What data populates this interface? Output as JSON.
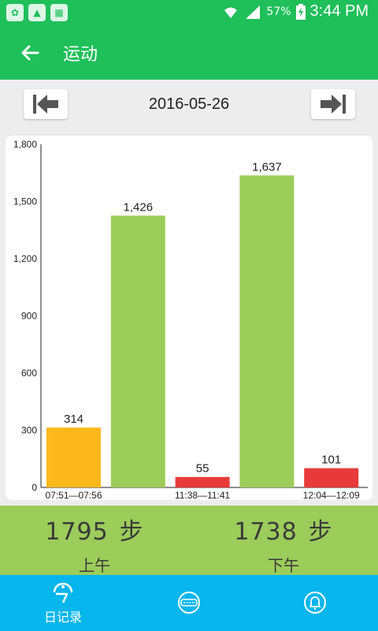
{
  "status_bar": {
    "battery": "57%",
    "time": "3:44 PM",
    "icons": [
      "app-icon-1",
      "gallery-icon",
      "app-icon-3",
      "wifi-icon",
      "signal-icon",
      "battery-charging-icon"
    ]
  },
  "app_bar": {
    "title": "运动",
    "back_icon": "arrow-left-icon"
  },
  "date_nav": {
    "date": "2016-05-26",
    "prev_icon": "skip-first-icon",
    "next_icon": "skip-last-icon"
  },
  "chart_data": {
    "type": "bar",
    "categories": [
      "07:51—07:56",
      "",
      "11:38—11:41",
      "",
      "12:04—12:09"
    ],
    "values": [
      314,
      1426,
      55,
      1637,
      101
    ],
    "value_labels": [
      "314",
      "1,426",
      "55",
      "1,637",
      "101"
    ],
    "bar_colors": [
      "#ffb81c",
      "#9ccc5a",
      "#e83a3a",
      "#9ccc5a",
      "#e83a3a"
    ],
    "yticks": [
      "0",
      "300",
      "600",
      "900",
      "1,200",
      "1,500",
      "1,800"
    ],
    "ylim": [
      0,
      1800
    ],
    "grid": false
  },
  "summary": {
    "am": {
      "value": "1795",
      "unit": "步",
      "label": "上午"
    },
    "pm": {
      "value": "1738",
      "unit": "步",
      "label": "下午"
    }
  },
  "bottom_nav": {
    "tabs": [
      {
        "label": "日记录",
        "icon": "daily-record-icon",
        "active": true
      },
      {
        "label": "",
        "icon": "device-icon",
        "active": false
      },
      {
        "label": "",
        "icon": "bell-icon",
        "active": false
      }
    ]
  },
  "colors": {
    "primary": "#1fbf5a",
    "summary_bg": "#9ccc5a",
    "nav_bg": "#06b6ec"
  }
}
